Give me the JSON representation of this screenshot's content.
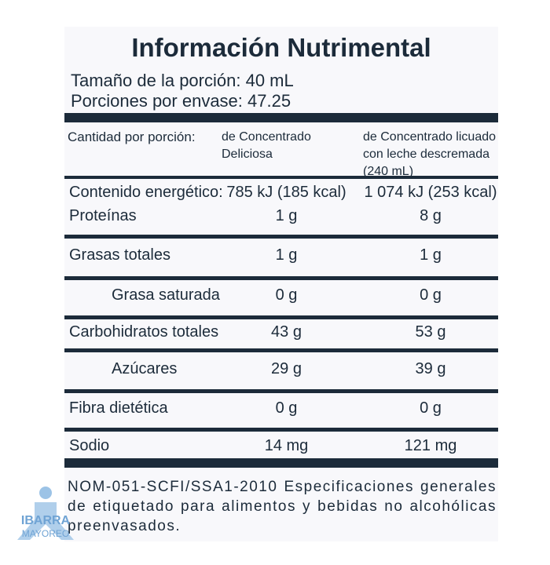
{
  "header": {
    "title": "Información Nutrimental",
    "serving_size": "Tamaño de la porción: 40 mL",
    "servings": "Porciones por envase: 47.25"
  },
  "table": {
    "columns": [
      "Cantidad por porción:",
      "de Concentrado Deliciosa",
      "de Concentrado licuado con leche descremada (240 mL)"
    ],
    "rows": [
      [
        "Contenido energético:",
        "785 kJ (185 kcal)",
        "1 074 kJ (253 kcal)"
      ],
      [
        "Proteínas",
        "1 g",
        "8 g"
      ],
      [
        "Grasas totales",
        "1 g",
        "1 g"
      ],
      [
        "Grasa saturada",
        "0 g",
        "0 g"
      ],
      [
        "Carbohidratos totales",
        "43 g",
        "53 g"
      ],
      [
        "Azúcares",
        "29 g",
        "39 g"
      ],
      [
        "Fibra dietética",
        "0 g",
        "0 g"
      ],
      [
        "Sodio",
        "14 mg",
        "121 mg"
      ]
    ]
  },
  "footer": "NOM-051-SCFI/SSA1-2010 Especificaciones generales de etiquetado para alimentos y bebidas no alcohólicas preenvasados.",
  "watermark": {
    "brand": "IBARRA",
    "sub": "MAYOREO"
  }
}
